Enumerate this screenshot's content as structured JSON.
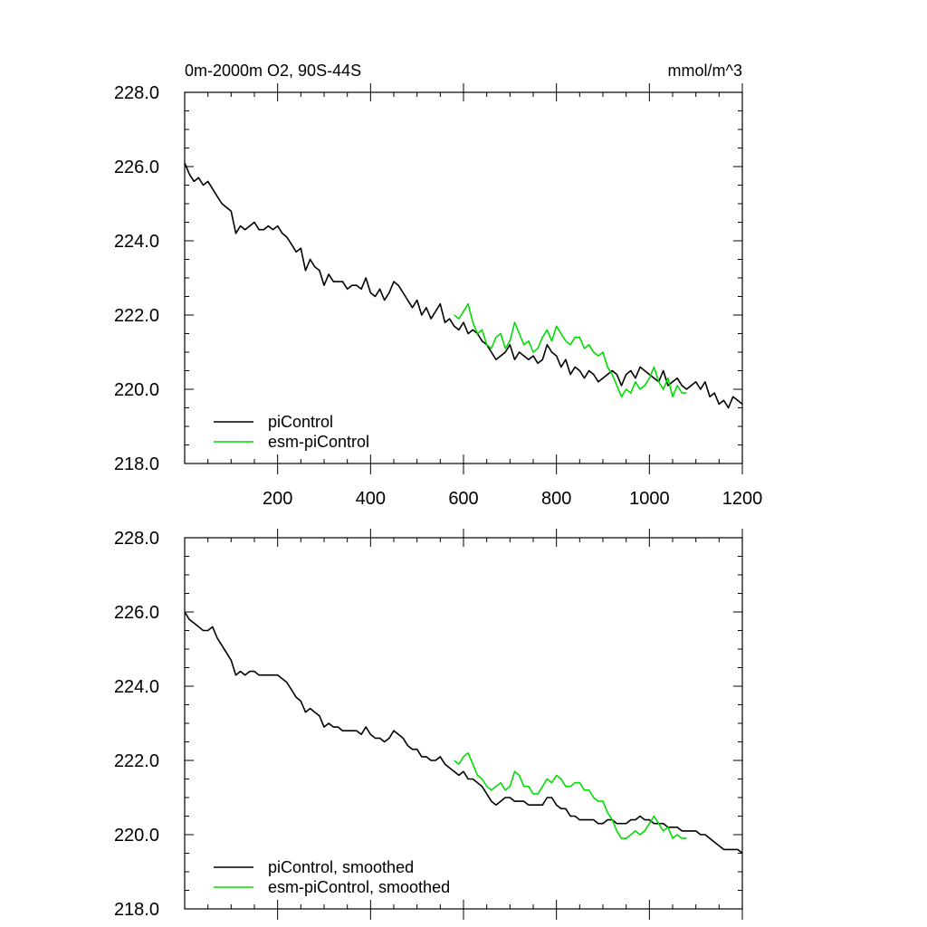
{
  "chart_data": [
    {
      "type": "line",
      "title": "0m-2000m O2, 90S-44S",
      "units": "mmol/m^3",
      "xlim": [
        0,
        1200
      ],
      "ylim": [
        218.0,
        228.0
      ],
      "xticks": [
        200,
        400,
        600,
        800,
        1000,
        1200
      ],
      "yticks": [
        218.0,
        220.0,
        222.0,
        224.0,
        226.0,
        228.0
      ],
      "show_x_tick_labels": true,
      "legend_position": "bottom-left",
      "series": [
        {
          "name": "piControl",
          "color": "#000000",
          "x": [
            0,
            10,
            20,
            30,
            40,
            50,
            60,
            70,
            80,
            90,
            100,
            110,
            120,
            130,
            140,
            150,
            160,
            170,
            180,
            190,
            200,
            210,
            220,
            230,
            240,
            250,
            260,
            270,
            280,
            290,
            300,
            310,
            320,
            330,
            340,
            350,
            360,
            370,
            380,
            390,
            400,
            410,
            420,
            430,
            440,
            450,
            460,
            470,
            480,
            490,
            500,
            510,
            520,
            530,
            540,
            550,
            560,
            570,
            580,
            590,
            600,
            610,
            620,
            630,
            640,
            650,
            660,
            670,
            680,
            690,
            700,
            710,
            720,
            730,
            740,
            750,
            760,
            770,
            780,
            790,
            800,
            810,
            820,
            830,
            840,
            850,
            860,
            870,
            880,
            890,
            900,
            910,
            920,
            930,
            940,
            950,
            960,
            970,
            980,
            990,
            1000,
            1010,
            1020,
            1030,
            1040,
            1050,
            1060,
            1070,
            1080,
            1090,
            1100,
            1110,
            1120,
            1130,
            1140,
            1150,
            1160,
            1170,
            1180,
            1190,
            1200
          ],
          "values": [
            226.1,
            225.8,
            225.6,
            225.7,
            225.5,
            225.6,
            225.4,
            225.2,
            225.0,
            224.9,
            224.8,
            224.2,
            224.4,
            224.3,
            224.4,
            224.5,
            224.3,
            224.3,
            224.4,
            224.3,
            224.4,
            224.2,
            224.1,
            223.9,
            223.7,
            223.8,
            223.2,
            223.5,
            223.3,
            223.2,
            222.8,
            223.1,
            222.9,
            222.9,
            222.9,
            222.7,
            222.8,
            222.8,
            222.7,
            223.0,
            222.6,
            222.5,
            222.7,
            222.4,
            222.6,
            222.9,
            222.8,
            222.6,
            222.4,
            222.2,
            222.4,
            222.0,
            222.2,
            221.9,
            222.1,
            222.3,
            221.8,
            221.9,
            221.7,
            221.6,
            221.8,
            221.5,
            221.6,
            221.5,
            221.3,
            221.2,
            221.0,
            220.8,
            220.9,
            221.0,
            221.2,
            220.8,
            221.0,
            220.9,
            220.8,
            220.9,
            220.7,
            220.8,
            221.2,
            221.0,
            220.9,
            220.6,
            220.8,
            220.4,
            220.6,
            220.5,
            220.3,
            220.5,
            220.4,
            220.2,
            220.3,
            220.4,
            220.5,
            220.4,
            220.1,
            220.4,
            220.5,
            220.3,
            220.6,
            220.5,
            220.4,
            220.3,
            220.2,
            220.5,
            220.1,
            220.2,
            220.3,
            220.1,
            220.0,
            220.1,
            220.2,
            220.0,
            220.2,
            219.8,
            219.9,
            219.6,
            219.7,
            219.5,
            219.8,
            219.7,
            219.6
          ]
        },
        {
          "name": "esm-piControl",
          "color": "#00dd00",
          "x": [
            580,
            590,
            600,
            610,
            620,
            630,
            640,
            650,
            660,
            670,
            680,
            690,
            700,
            710,
            720,
            730,
            740,
            750,
            760,
            770,
            780,
            790,
            800,
            810,
            820,
            830,
            840,
            850,
            860,
            870,
            880,
            890,
            900,
            910,
            920,
            930,
            940,
            950,
            960,
            970,
            980,
            990,
            1000,
            1010,
            1020,
            1030,
            1040,
            1050,
            1060,
            1070,
            1080
          ],
          "values": [
            222.0,
            221.9,
            222.1,
            222.3,
            221.8,
            221.5,
            221.6,
            221.2,
            221.1,
            221.4,
            221.5,
            221.1,
            221.3,
            221.8,
            221.5,
            221.2,
            221.3,
            221.0,
            221.1,
            221.4,
            221.6,
            221.3,
            221.7,
            221.5,
            221.3,
            221.2,
            221.4,
            221.4,
            221.1,
            221.2,
            221.0,
            220.9,
            221.0,
            220.6,
            220.4,
            220.1,
            219.8,
            220.0,
            219.9,
            220.2,
            220.0,
            220.1,
            220.3,
            220.6,
            220.2,
            220.0,
            220.3,
            219.8,
            220.1,
            219.9,
            219.9
          ]
        }
      ]
    },
    {
      "type": "line",
      "xlim": [
        0,
        1200
      ],
      "ylim": [
        218.0,
        228.0
      ],
      "xticks": [
        200,
        400,
        600,
        800,
        1000,
        1200
      ],
      "yticks": [
        218.0,
        220.0,
        222.0,
        224.0,
        226.0,
        228.0
      ],
      "show_x_tick_labels": false,
      "legend_position": "bottom-left",
      "series": [
        {
          "name": "piControl, smoothed",
          "color": "#000000",
          "x": [
            0,
            10,
            20,
            30,
            40,
            50,
            60,
            70,
            80,
            90,
            100,
            110,
            120,
            130,
            140,
            150,
            160,
            170,
            180,
            190,
            200,
            210,
            220,
            230,
            240,
            250,
            260,
            270,
            280,
            290,
            300,
            310,
            320,
            330,
            340,
            350,
            360,
            370,
            380,
            390,
            400,
            410,
            420,
            430,
            440,
            450,
            460,
            470,
            480,
            490,
            500,
            510,
            520,
            530,
            540,
            550,
            560,
            570,
            580,
            590,
            600,
            610,
            620,
            630,
            640,
            650,
            660,
            670,
            680,
            690,
            700,
            710,
            720,
            730,
            740,
            750,
            760,
            770,
            780,
            790,
            800,
            810,
            820,
            830,
            840,
            850,
            860,
            870,
            880,
            890,
            900,
            910,
            920,
            930,
            940,
            950,
            960,
            970,
            980,
            990,
            1000,
            1010,
            1020,
            1030,
            1040,
            1050,
            1060,
            1070,
            1080,
            1090,
            1100,
            1110,
            1120,
            1130,
            1140,
            1150,
            1160,
            1170,
            1180,
            1190,
            1200
          ],
          "values": [
            226.0,
            225.8,
            225.7,
            225.6,
            225.5,
            225.5,
            225.6,
            225.3,
            225.1,
            224.9,
            224.7,
            224.3,
            224.4,
            224.3,
            224.4,
            224.4,
            224.3,
            224.3,
            224.3,
            224.3,
            224.3,
            224.2,
            224.1,
            223.9,
            223.7,
            223.6,
            223.3,
            223.4,
            223.3,
            223.2,
            222.9,
            223.0,
            222.9,
            222.9,
            222.8,
            222.8,
            222.8,
            222.8,
            222.7,
            222.9,
            222.7,
            222.6,
            222.6,
            222.5,
            222.6,
            222.8,
            222.7,
            222.6,
            222.4,
            222.3,
            222.3,
            222.1,
            222.1,
            222.0,
            222.0,
            222.1,
            221.9,
            221.8,
            221.7,
            221.6,
            221.7,
            221.5,
            221.5,
            221.4,
            221.3,
            221.1,
            220.9,
            220.8,
            220.9,
            221.0,
            221.0,
            220.9,
            220.9,
            220.9,
            220.8,
            220.8,
            220.8,
            220.8,
            221.0,
            221.0,
            220.8,
            220.7,
            220.7,
            220.5,
            220.5,
            220.4,
            220.4,
            220.4,
            220.4,
            220.3,
            220.3,
            220.4,
            220.4,
            220.3,
            220.3,
            220.3,
            220.4,
            220.4,
            220.5,
            220.4,
            220.4,
            220.3,
            220.3,
            220.3,
            220.2,
            220.2,
            220.2,
            220.1,
            220.1,
            220.1,
            220.1,
            220.0,
            220.0,
            219.9,
            219.8,
            219.7,
            219.6,
            219.6,
            219.6,
            219.6,
            219.5
          ]
        },
        {
          "name": "esm-piControl, smoothed",
          "color": "#00dd00",
          "x": [
            580,
            590,
            600,
            610,
            620,
            630,
            640,
            650,
            660,
            670,
            680,
            690,
            700,
            710,
            720,
            730,
            740,
            750,
            760,
            770,
            780,
            790,
            800,
            810,
            820,
            830,
            840,
            850,
            860,
            870,
            880,
            890,
            900,
            910,
            920,
            930,
            940,
            950,
            960,
            970,
            980,
            990,
            1000,
            1010,
            1020,
            1030,
            1040,
            1050,
            1060,
            1070,
            1080
          ],
          "values": [
            222.0,
            221.9,
            222.1,
            222.2,
            221.9,
            221.6,
            221.5,
            221.3,
            221.2,
            221.3,
            221.4,
            221.2,
            221.3,
            221.7,
            221.6,
            221.3,
            221.3,
            221.1,
            221.1,
            221.3,
            221.5,
            221.4,
            221.6,
            221.5,
            221.3,
            221.3,
            221.4,
            221.4,
            221.2,
            221.2,
            221.0,
            220.9,
            220.9,
            220.6,
            220.4,
            220.1,
            219.9,
            219.9,
            220.0,
            220.1,
            220.0,
            220.1,
            220.3,
            220.5,
            220.3,
            220.1,
            220.2,
            219.9,
            220.0,
            219.9,
            219.9
          ]
        }
      ]
    }
  ]
}
